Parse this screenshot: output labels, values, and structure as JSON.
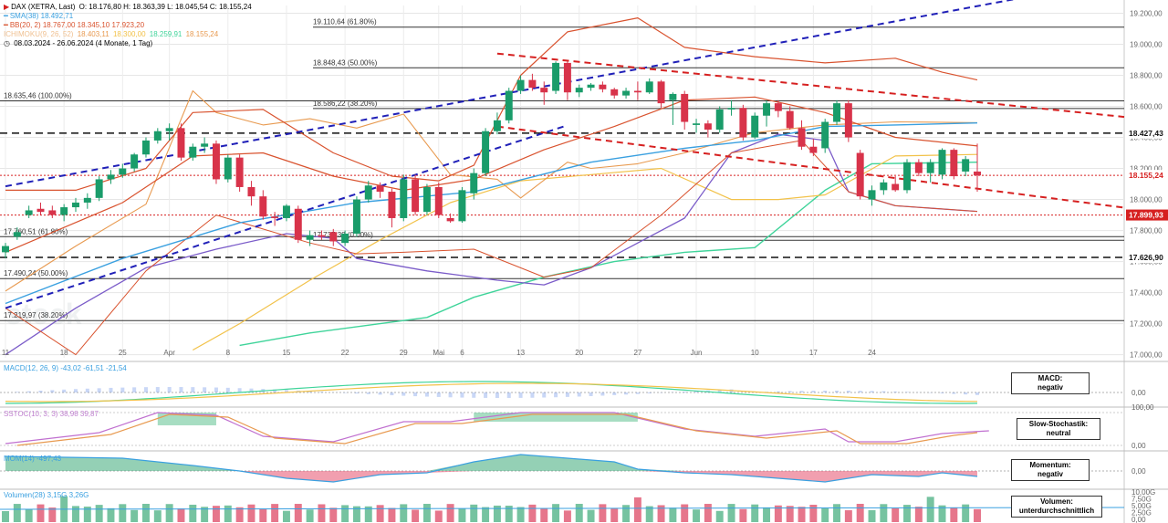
{
  "header": {
    "instrument": "DAX (XETRA, Last)",
    "ohlc": "O: 18.176,80  H: 18.363,39  L: 18.045,54  C: 18.155,24",
    "sma": "SMA(38)  18.492,71",
    "bb": "BB(20, 2)  18.767,00  18.345,10  17.923,20",
    "ichimoku_label": "ICHIMOKU(9, 26, 52)",
    "ichimoku_values": [
      "18.403,11",
      "18.300,00",
      "18.259,91",
      "18.155,24"
    ],
    "period": "08.03.2024 - 26.06.2024  (4 Monate, 1 Tag)"
  },
  "colors": {
    "up": "#1a9c6a",
    "down": "#d8334a",
    "sma": "#3aa0e0",
    "bb": "#d9532f",
    "trend": "#2020b8",
    "resist": "#d62020",
    "ich1": "#e89a50",
    "ich2": "#7b5cc9",
    "ich3": "#f2c24a",
    "ich4": "#3fd49a"
  },
  "chart_data": {
    "type": "candlestick",
    "ylim": [
      16980,
      19250
    ],
    "y_ticks": [
      "19.200,00",
      "19.000,00",
      "18.800,00",
      "18.600,00",
      "18.400,00",
      "18.200,00",
      "18.000,00",
      "17.800,00",
      "17.600,00",
      "17.400,00",
      "17.200,00",
      "17.000,00"
    ],
    "y_tick_values": [
      19200,
      19000,
      18800,
      18600,
      18400,
      18200,
      18000,
      17800,
      17600,
      17400,
      17200,
      17000
    ],
    "x_ticks": [
      "11",
      "18",
      "25",
      "Apr",
      "8",
      "15",
      "22",
      "29",
      "Mai",
      "6",
      "13",
      "20",
      "27",
      "Jun",
      "10",
      "17",
      "24"
    ],
    "x_tick_index": [
      0,
      5,
      10,
      14,
      19,
      24,
      29,
      34,
      37,
      39,
      44,
      49,
      54,
      59,
      64,
      69,
      74
    ],
    "candles": [
      {
        "o": 17660,
        "h": 17720,
        "l": 17620,
        "c": 17700
      },
      {
        "o": 17760,
        "h": 17820,
        "l": 17740,
        "c": 17790
      },
      {
        "o": 17900,
        "h": 17960,
        "l": 17880,
        "c": 17930
      },
      {
        "o": 17940,
        "h": 17980,
        "l": 17900,
        "c": 17920
      },
      {
        "o": 17930,
        "h": 17960,
        "l": 17880,
        "c": 17900
      },
      {
        "o": 17900,
        "h": 17970,
        "l": 17860,
        "c": 17950
      },
      {
        "o": 17950,
        "h": 18010,
        "l": 17920,
        "c": 17980
      },
      {
        "o": 17980,
        "h": 18040,
        "l": 17940,
        "c": 18010
      },
      {
        "o": 18010,
        "h": 18150,
        "l": 17990,
        "c": 18130
      },
      {
        "o": 18130,
        "h": 18190,
        "l": 18100,
        "c": 18160
      },
      {
        "o": 18160,
        "h": 18230,
        "l": 18140,
        "c": 18200
      },
      {
        "o": 18200,
        "h": 18300,
        "l": 18180,
        "c": 18290
      },
      {
        "o": 18290,
        "h": 18400,
        "l": 18270,
        "c": 18380
      },
      {
        "o": 18380,
        "h": 18460,
        "l": 18360,
        "c": 18440
      },
      {
        "o": 18440,
        "h": 18490,
        "l": 18380,
        "c": 18460
      },
      {
        "o": 18460,
        "h": 18490,
        "l": 18250,
        "c": 18270
      },
      {
        "o": 18270,
        "h": 18360,
        "l": 18250,
        "c": 18340
      },
      {
        "o": 18340,
        "h": 18400,
        "l": 18300,
        "c": 18360
      },
      {
        "o": 18360,
        "h": 18380,
        "l": 18100,
        "c": 18130
      },
      {
        "o": 18130,
        "h": 18290,
        "l": 18110,
        "c": 18270
      },
      {
        "o": 18270,
        "h": 18290,
        "l": 18050,
        "c": 18080
      },
      {
        "o": 18080,
        "h": 18120,
        "l": 17960,
        "c": 18020
      },
      {
        "o": 18020,
        "h": 18060,
        "l": 17870,
        "c": 17890
      },
      {
        "o": 17890,
        "h": 17920,
        "l": 17830,
        "c": 17880
      },
      {
        "o": 17880,
        "h": 17970,
        "l": 17860,
        "c": 17960
      },
      {
        "o": 17940,
        "h": 17960,
        "l": 17720,
        "c": 17740
      },
      {
        "o": 17740,
        "h": 17800,
        "l": 17700,
        "c": 17770
      },
      {
        "o": 17770,
        "h": 17800,
        "l": 17740,
        "c": 17760
      },
      {
        "o": 17790,
        "h": 17810,
        "l": 17700,
        "c": 17730
      },
      {
        "o": 17720,
        "h": 17800,
        "l": 17700,
        "c": 17780
      },
      {
        "o": 17780,
        "h": 18020,
        "l": 17760,
        "c": 18000
      },
      {
        "o": 18000,
        "h": 18120,
        "l": 17980,
        "c": 18090
      },
      {
        "o": 18090,
        "h": 18110,
        "l": 18010,
        "c": 18050
      },
      {
        "o": 18050,
        "h": 18070,
        "l": 17820,
        "c": 17880
      },
      {
        "o": 17880,
        "h": 18160,
        "l": 17860,
        "c": 18130
      },
      {
        "o": 18130,
        "h": 18160,
        "l": 17900,
        "c": 17920
      },
      {
        "o": 17920,
        "h": 18100,
        "l": 17900,
        "c": 18080
      },
      {
        "o": 18080,
        "h": 18110,
        "l": 17880,
        "c": 17900
      },
      {
        "o": 17880,
        "h": 17910,
        "l": 17850,
        "c": 17860
      },
      {
        "o": 17860,
        "h": 18080,
        "l": 17850,
        "c": 18060
      },
      {
        "o": 18040,
        "h": 18200,
        "l": 18000,
        "c": 18170
      },
      {
        "o": 18170,
        "h": 18460,
        "l": 18150,
        "c": 18440
      },
      {
        "o": 18440,
        "h": 18560,
        "l": 18420,
        "c": 18510
      },
      {
        "o": 18510,
        "h": 18720,
        "l": 18490,
        "c": 18700
      },
      {
        "o": 18700,
        "h": 18800,
        "l": 18680,
        "c": 18770
      },
      {
        "o": 18770,
        "h": 18810,
        "l": 18700,
        "c": 18720
      },
      {
        "o": 18720,
        "h": 18760,
        "l": 18610,
        "c": 18690
      },
      {
        "o": 18700,
        "h": 18890,
        "l": 18680,
        "c": 18880
      },
      {
        "o": 18880,
        "h": 18890,
        "l": 18640,
        "c": 18690
      },
      {
        "o": 18690,
        "h": 18740,
        "l": 18660,
        "c": 18720
      },
      {
        "o": 18720,
        "h": 18750,
        "l": 18700,
        "c": 18740
      },
      {
        "o": 18740,
        "h": 18760,
        "l": 18690,
        "c": 18710
      },
      {
        "o": 18710,
        "h": 18720,
        "l": 18650,
        "c": 18670
      },
      {
        "o": 18670,
        "h": 18720,
        "l": 18650,
        "c": 18700
      },
      {
        "o": 18700,
        "h": 18760,
        "l": 18640,
        "c": 18690
      },
      {
        "o": 18690,
        "h": 18780,
        "l": 18680,
        "c": 18760
      },
      {
        "o": 18760,
        "h": 18770,
        "l": 18590,
        "c": 18620
      },
      {
        "o": 18640,
        "h": 18690,
        "l": 18480,
        "c": 18680
      },
      {
        "o": 18680,
        "h": 18700,
        "l": 18450,
        "c": 18500
      },
      {
        "o": 18480,
        "h": 18520,
        "l": 18430,
        "c": 18490
      },
      {
        "o": 18490,
        "h": 18510,
        "l": 18400,
        "c": 18450
      },
      {
        "o": 18450,
        "h": 18600,
        "l": 18430,
        "c": 18580
      },
      {
        "o": 18580,
        "h": 18640,
        "l": 18540,
        "c": 18590
      },
      {
        "o": 18590,
        "h": 18610,
        "l": 18380,
        "c": 18400
      },
      {
        "o": 18400,
        "h": 18560,
        "l": 18390,
        "c": 18540
      },
      {
        "o": 18540,
        "h": 18640,
        "l": 18470,
        "c": 18620
      },
      {
        "o": 18620,
        "h": 18640,
        "l": 18530,
        "c": 18570
      },
      {
        "o": 18570,
        "h": 18600,
        "l": 18450,
        "c": 18460
      },
      {
        "o": 18460,
        "h": 18510,
        "l": 18320,
        "c": 18340
      },
      {
        "o": 18340,
        "h": 18390,
        "l": 18280,
        "c": 18300
      },
      {
        "o": 18330,
        "h": 18520,
        "l": 18300,
        "c": 18500
      },
      {
        "o": 18500,
        "h": 18640,
        "l": 18480,
        "c": 18620
      },
      {
        "o": 18620,
        "h": 18640,
        "l": 18370,
        "c": 18400
      },
      {
        "o": 18300,
        "h": 18320,
        "l": 18000,
        "c": 18020
      },
      {
        "o": 18000,
        "h": 18090,
        "l": 17960,
        "c": 18060
      },
      {
        "o": 18060,
        "h": 18130,
        "l": 18030,
        "c": 18110
      },
      {
        "o": 18100,
        "h": 18150,
        "l": 18050,
        "c": 18060
      },
      {
        "o": 18060,
        "h": 18260,
        "l": 18040,
        "c": 18240
      },
      {
        "o": 18240,
        "h": 18260,
        "l": 18150,
        "c": 18170
      },
      {
        "o": 18170,
        "h": 18260,
        "l": 18110,
        "c": 18240
      },
      {
        "o": 18160,
        "h": 18330,
        "l": 18130,
        "c": 18320
      },
      {
        "o": 18320,
        "h": 18330,
        "l": 18130,
        "c": 18150
      },
      {
        "o": 18180,
        "h": 18280,
        "l": 18150,
        "c": 18260
      },
      {
        "o": 18180,
        "h": 18360,
        "l": 18050,
        "c": 18155
      }
    ],
    "fib_levels": [
      {
        "label": "19.110,64 (61.80%)",
        "value": 19110.64
      },
      {
        "label": "18.848,43 (50.00%)",
        "value": 18848.43
      },
      {
        "label": "18.635,46 (100.00%)",
        "value": 18635.46
      },
      {
        "label": "18.586,22 (38.20%)",
        "value": 18586.22
      },
      {
        "label": "17.760,51 (61.80%)",
        "value": 17760.51
      },
      {
        "label": "17.737,38 (0.00%)",
        "value": 17737.38
      },
      {
        "label": "17.490,24 (50.00%)",
        "value": 17490.24
      },
      {
        "label": "17.219,97 (38.20%)",
        "value": 17219.97
      }
    ],
    "horizontal_levels": [
      {
        "label": "18.427,43",
        "value": 18427.43,
        "style": "black-dashed"
      },
      {
        "label": "18.155,24",
        "value": 18155.24,
        "style": "red-dotted"
      },
      {
        "label": "17.899,93",
        "value": 17899.93,
        "style": "red-dotted"
      },
      {
        "label": "17.626,90",
        "value": 17626.9,
        "style": "black-dashed"
      }
    ],
    "trend_lines": [
      {
        "name": "upper-channel",
        "color": "blue",
        "p1": [
          0,
          18085
        ],
        "p2": [
          84,
          19260
        ]
      },
      {
        "name": "lower-channel",
        "color": "blue",
        "p1": [
          0,
          17300
        ],
        "p2": [
          44,
          18380
        ]
      },
      {
        "name": "resistance-upper",
        "color": "red",
        "p1": [
          42,
          18940
        ],
        "p2": [
          84,
          18620
        ]
      },
      {
        "name": "resistance-lower",
        "color": "red",
        "p1": [
          42,
          18470
        ],
        "p2": [
          84,
          18060
        ]
      }
    ],
    "sma38": [
      [
        0,
        17330
      ],
      [
        10,
        17620
      ],
      [
        20,
        17850
      ],
      [
        30,
        17980
      ],
      [
        40,
        18050
      ],
      [
        50,
        18240
      ],
      [
        58,
        18330
      ],
      [
        64,
        18380
      ],
      [
        70,
        18470
      ],
      [
        76,
        18480
      ],
      [
        83,
        18493
      ]
    ],
    "bb_upper": [
      [
        0,
        18060
      ],
      [
        6,
        18060
      ],
      [
        12,
        18200
      ],
      [
        16,
        18560
      ],
      [
        22,
        18580
      ],
      [
        28,
        18300
      ],
      [
        33,
        18150
      ],
      [
        37,
        18120
      ],
      [
        40,
        18220
      ],
      [
        44,
        18800
      ],
      [
        48,
        19080
      ],
      [
        54,
        19170
      ],
      [
        58,
        18980
      ],
      [
        64,
        18920
      ],
      [
        70,
        18880
      ],
      [
        76,
        18910
      ],
      [
        80,
        18820
      ],
      [
        83,
        18770
      ]
    ],
    "bb_mid": [
      [
        0,
        17660
      ],
      [
        10,
        17980
      ],
      [
        16,
        18280
      ],
      [
        22,
        18300
      ],
      [
        28,
        18150
      ],
      [
        34,
        18060
      ],
      [
        40,
        18130
      ],
      [
        46,
        18320
      ],
      [
        52,
        18470
      ],
      [
        58,
        18640
      ],
      [
        64,
        18660
      ],
      [
        70,
        18560
      ],
      [
        76,
        18400
      ],
      [
        83,
        18345
      ]
    ],
    "bb_lower": [
      [
        0,
        17300
      ],
      [
        6,
        17000
      ],
      [
        12,
        17540
      ],
      [
        18,
        17900
      ],
      [
        26,
        17720
      ],
      [
        30,
        17650
      ],
      [
        34,
        17660
      ],
      [
        40,
        17680
      ],
      [
        46,
        17500
      ],
      [
        50,
        17560
      ],
      [
        56,
        17900
      ],
      [
        62,
        18300
      ],
      [
        68,
        18380
      ],
      [
        72,
        18050
      ],
      [
        76,
        17960
      ],
      [
        83,
        17923
      ]
    ],
    "ich_orange": [
      [
        0,
        17410
      ],
      [
        6,
        17700
      ],
      [
        12,
        17970
      ],
      [
        16,
        18700
      ],
      [
        18,
        18560
      ],
      [
        22,
        18480
      ],
      [
        26,
        18520
      ],
      [
        30,
        18460
      ],
      [
        34,
        18550
      ],
      [
        38,
        18160
      ],
      [
        42,
        18130
      ],
      [
        44,
        18010
      ],
      [
        48,
        18240
      ],
      [
        50,
        18200
      ],
      [
        54,
        18230
      ],
      [
        58,
        18300
      ],
      [
        64,
        18430
      ],
      [
        70,
        18480
      ],
      [
        76,
        18500
      ],
      [
        83,
        18495
      ]
    ],
    "ich_purple": [
      [
        0,
        17000
      ],
      [
        6,
        17300
      ],
      [
        12,
        17560
      ],
      [
        18,
        17680
      ],
      [
        24,
        17780
      ],
      [
        28,
        17750
      ],
      [
        30,
        17620
      ],
      [
        36,
        17540
      ],
      [
        42,
        17480
      ],
      [
        46,
        17450
      ],
      [
        50,
        17560
      ],
      [
        54,
        17720
      ],
      [
        58,
        17880
      ],
      [
        62,
        18300
      ],
      [
        66,
        18420
      ],
      [
        70,
        18380
      ],
      [
        72,
        18050
      ],
      [
        76,
        17960
      ],
      [
        83,
        17923
      ]
    ],
    "ich_yellow": [
      [
        16,
        17030
      ],
      [
        20,
        17200
      ],
      [
        26,
        17480
      ],
      [
        32,
        17740
      ],
      [
        38,
        17980
      ],
      [
        44,
        18120
      ],
      [
        50,
        18160
      ],
      [
        56,
        18200
      ],
      [
        62,
        18000
      ],
      [
        66,
        18000
      ],
      [
        70,
        18030
      ],
      [
        76,
        18280
      ],
      [
        83,
        18290
      ]
    ],
    "ich_green": [
      [
        20,
        17060
      ],
      [
        26,
        17140
      ],
      [
        32,
        17200
      ],
      [
        36,
        17240
      ],
      [
        40,
        17370
      ],
      [
        46,
        17500
      ],
      [
        52,
        17600
      ],
      [
        58,
        17660
      ],
      [
        64,
        17690
      ],
      [
        70,
        18060
      ],
      [
        74,
        18230
      ],
      [
        83,
        18240
      ]
    ],
    "panels": {
      "macd": {
        "legend": "MACD(12, 26, 9)  -43,02  -61,51  -21,54",
        "ref": "0,00",
        "signal_label": "MACD:",
        "signal_value": "negativ"
      },
      "stoch": {
        "legend": "SSTOC(10, 3, 3)  38,98  39,87",
        "ticks": [
          "100,00",
          "0,00"
        ],
        "signal_label": "Slow-Stochastik:",
        "signal_value": "neutral"
      },
      "mom": {
        "legend": "MOM(14)  -497,43",
        "ref": "0,00",
        "signal_label": "Momentum:",
        "signal_value": "negativ"
      },
      "vol": {
        "legend": "Volumen(28)  3,15G  3,26G",
        "ticks": [
          "10,00G",
          "7,50G",
          "5,00G",
          "2,50G",
          "0,00"
        ],
        "signal_label": "Volumen:",
        "signal_value": "unterdurchschnittlich"
      }
    },
    "watermark": "stock"
  }
}
